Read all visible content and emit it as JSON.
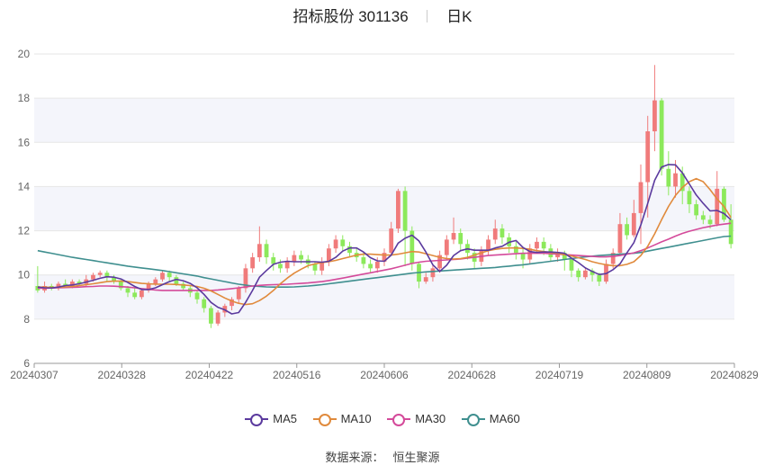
{
  "header": {
    "stock": "招标股份 301136",
    "period": "日K"
  },
  "source": {
    "label": "数据来源：",
    "name": "恒生聚源"
  },
  "colors": {
    "up": "#f07b7b",
    "down": "#8ce95b",
    "grid": "#e6e6e6",
    "band": "#f4f5fb",
    "axis": "#999999",
    "tick": "#666666"
  },
  "chart_data": {
    "type": "candlestick",
    "ylim": [
      6,
      20
    ],
    "yticks": [
      6,
      8,
      10,
      12,
      14,
      16,
      18,
      20
    ],
    "xtick_labels": [
      "20240307",
      "20240328",
      "20240422",
      "20240516",
      "20240606",
      "20240628",
      "20240719",
      "20240809",
      "20240829"
    ],
    "legend": [
      {
        "name": "MA5",
        "color": "#5b3a9e"
      },
      {
        "name": "MA10",
        "color": "#e08a3c"
      },
      {
        "name": "MA30",
        "color": "#d44a9a"
      },
      {
        "name": "MA60",
        "color": "#3f8f8f"
      }
    ],
    "candles": [
      [
        9.5,
        9.3,
        10.4,
        9.2
      ],
      [
        9.3,
        9.5,
        9.7,
        9.2
      ],
      [
        9.5,
        9.4,
        9.6,
        9.3
      ],
      [
        9.4,
        9.6,
        9.7,
        9.3
      ],
      [
        9.6,
        9.5,
        9.8,
        9.4
      ],
      [
        9.5,
        9.7,
        9.8,
        9.4
      ],
      [
        9.7,
        9.6,
        9.8,
        9.5
      ],
      [
        9.6,
        9.8,
        10.0,
        9.5
      ],
      [
        9.8,
        10.0,
        10.1,
        9.7
      ],
      [
        10.0,
        10.1,
        10.2,
        9.9
      ],
      [
        10.1,
        9.9,
        10.2,
        9.7
      ],
      [
        9.9,
        9.7,
        10.0,
        9.6
      ],
      [
        9.7,
        9.4,
        9.8,
        9.3
      ],
      [
        9.4,
        9.2,
        9.5,
        9.0
      ],
      [
        9.2,
        9.0,
        9.4,
        8.9
      ],
      [
        9.0,
        9.3,
        9.4,
        8.9
      ],
      [
        9.3,
        9.6,
        9.7,
        9.2
      ],
      [
        9.6,
        9.8,
        9.9,
        9.5
      ],
      [
        9.8,
        10.1,
        10.2,
        9.7
      ],
      [
        10.1,
        9.9,
        10.2,
        9.7
      ],
      [
        9.9,
        9.6,
        10.0,
        9.5
      ],
      [
        9.6,
        9.4,
        9.7,
        9.3
      ],
      [
        9.4,
        9.2,
        9.5,
        9.0
      ],
      [
        9.2,
        8.9,
        9.3,
        8.7
      ],
      [
        8.9,
        8.5,
        9.0,
        8.3
      ],
      [
        8.5,
        7.8,
        8.6,
        7.6
      ],
      [
        7.8,
        8.3,
        8.4,
        7.7
      ],
      [
        8.3,
        8.6,
        8.7,
        8.1
      ],
      [
        8.6,
        8.9,
        9.0,
        8.4
      ],
      [
        8.9,
        9.4,
        9.5,
        8.7
      ],
      [
        9.4,
        10.3,
        10.5,
        9.2
      ],
      [
        10.3,
        10.8,
        11.0,
        10.1
      ],
      [
        10.8,
        11.4,
        12.2,
        10.6
      ],
      [
        11.4,
        10.8,
        11.6,
        10.5
      ],
      [
        10.8,
        10.5,
        11.0,
        10.2
      ],
      [
        10.5,
        10.3,
        10.7,
        10.1
      ],
      [
        10.3,
        10.6,
        10.8,
        10.1
      ],
      [
        10.6,
        10.9,
        11.1,
        10.4
      ],
      [
        10.9,
        10.7,
        11.1,
        10.5
      ],
      [
        10.7,
        10.5,
        10.9,
        10.3
      ],
      [
        10.5,
        10.2,
        10.6,
        10.0
      ],
      [
        10.2,
        10.6,
        10.8,
        10.0
      ],
      [
        10.6,
        11.2,
        11.4,
        10.4
      ],
      [
        11.2,
        11.6,
        11.8,
        11.0
      ],
      [
        11.6,
        11.3,
        11.8,
        11.1
      ],
      [
        11.3,
        11.0,
        11.5,
        10.8
      ],
      [
        11.0,
        10.8,
        11.2,
        10.6
      ],
      [
        10.8,
        10.5,
        11.0,
        10.3
      ],
      [
        10.5,
        10.3,
        10.7,
        10.1
      ],
      [
        10.3,
        10.6,
        10.8,
        10.1
      ],
      [
        10.6,
        11.0,
        11.2,
        10.4
      ],
      [
        11.0,
        12.1,
        12.4,
        10.9
      ],
      [
        12.1,
        13.8,
        13.9,
        11.9
      ],
      [
        13.8,
        12.0,
        14.0,
        10.4
      ],
      [
        12.0,
        10.5,
        12.2,
        10.2
      ],
      [
        10.5,
        9.7,
        10.6,
        9.4
      ],
      [
        9.7,
        9.9,
        10.1,
        9.6
      ],
      [
        9.9,
        10.3,
        10.5,
        9.7
      ],
      [
        10.3,
        10.9,
        11.1,
        10.1
      ],
      [
        10.9,
        11.6,
        11.8,
        10.7
      ],
      [
        11.6,
        11.9,
        12.6,
        11.4
      ],
      [
        11.9,
        11.4,
        12.1,
        11.1
      ],
      [
        11.4,
        11.0,
        11.6,
        10.7
      ],
      [
        11.0,
        10.6,
        11.2,
        10.3
      ],
      [
        10.6,
        11.1,
        11.3,
        10.4
      ],
      [
        11.1,
        11.6,
        11.8,
        10.9
      ],
      [
        11.6,
        12.1,
        12.5,
        11.4
      ],
      [
        12.1,
        11.7,
        12.3,
        11.4
      ],
      [
        11.7,
        11.3,
        11.9,
        11.0
      ],
      [
        11.3,
        11.0,
        11.5,
        10.7
      ],
      [
        11.0,
        10.7,
        11.2,
        10.3
      ],
      [
        10.7,
        11.2,
        11.4,
        10.5
      ],
      [
        11.2,
        11.5,
        11.7,
        11.0
      ],
      [
        11.5,
        11.2,
        11.7,
        10.9
      ],
      [
        11.2,
        10.8,
        11.4,
        10.6
      ],
      [
        10.8,
        11.0,
        11.2,
        10.6
      ],
      [
        11.0,
        10.7,
        11.1,
        10.2
      ],
      [
        10.7,
        10.2,
        10.8,
        9.9
      ],
      [
        10.2,
        9.9,
        10.3,
        9.7
      ],
      [
        9.9,
        10.2,
        10.3,
        9.8
      ],
      [
        10.2,
        10.0,
        10.3,
        9.7
      ],
      [
        10.0,
        9.7,
        10.1,
        9.5
      ],
      [
        9.7,
        10.5,
        10.7,
        9.6
      ],
      [
        10.5,
        11.0,
        11.2,
        10.3
      ],
      [
        11.0,
        12.3,
        12.8,
        10.9
      ],
      [
        12.3,
        11.8,
        12.6,
        11.6
      ],
      [
        11.8,
        12.8,
        13.4,
        11.7
      ],
      [
        12.8,
        14.2,
        15.0,
        11.4
      ],
      [
        14.2,
        16.5,
        17.2,
        12.6
      ],
      [
        16.5,
        17.9,
        19.5,
        15.6
      ],
      [
        17.9,
        14.8,
        18.0,
        14.5
      ],
      [
        14.8,
        14.0,
        15.6,
        13.6
      ],
      [
        14.0,
        14.6,
        15.2,
        13.5
      ],
      [
        14.6,
        13.8,
        14.9,
        13.2
      ],
      [
        13.8,
        13.2,
        14.0,
        12.8
      ],
      [
        13.2,
        12.7,
        13.4,
        12.5
      ],
      [
        12.7,
        12.5,
        12.9,
        12.3
      ],
      [
        12.5,
        12.3,
        12.7,
        12.1
      ],
      [
        12.3,
        13.9,
        14.7,
        12.2
      ],
      [
        13.9,
        12.5,
        14.0,
        12.4
      ],
      [
        12.5,
        11.4,
        13.2,
        11.2
      ]
    ],
    "ma5": [
      9.45,
      9.42,
      9.41,
      9.45,
      9.52,
      9.55,
      9.6,
      9.68,
      9.76,
      9.85,
      9.92,
      9.9,
      9.82,
      9.66,
      9.48,
      9.34,
      9.34,
      9.42,
      9.56,
      9.7,
      9.8,
      9.74,
      9.62,
      9.42,
      9.12,
      8.76,
      8.54,
      8.42,
      8.24,
      8.3,
      8.76,
      9.3,
      9.9,
      10.2,
      10.48,
      10.58,
      10.62,
      10.6,
      10.6,
      10.6,
      10.6,
      10.58,
      10.62,
      10.8,
      11.08,
      11.22,
      11.22,
      11.04,
      10.78,
      10.64,
      10.62,
      10.9,
      11.44,
      11.66,
      11.8,
      11.54,
      11.04,
      10.46,
      10.16,
      10.44,
      10.88,
      11.1,
      11.18,
      11.12,
      11.12,
      11.12,
      11.22,
      11.3,
      11.48,
      11.56,
      11.24,
      11.06,
      11.02,
      11.04,
      11.04,
      11.02,
      10.98,
      10.76,
      10.56,
      10.32,
      10.16,
      10.02,
      10.06,
      10.24,
      10.5,
      11.0,
      11.46,
      12.26,
      13.24,
      14.28,
      14.88,
      15.0,
      14.98,
      14.62,
      14.12,
      13.62,
      13.24,
      12.9,
      12.92,
      12.78,
      12.5
    ],
    "ma10": [
      9.45,
      9.45,
      9.44,
      9.44,
      9.46,
      9.48,
      9.52,
      9.56,
      9.6,
      9.65,
      9.7,
      9.72,
      9.72,
      9.7,
      9.66,
      9.62,
      9.6,
      9.58,
      9.58,
      9.58,
      9.57,
      9.55,
      9.52,
      9.48,
      9.4,
      9.28,
      9.12,
      8.96,
      8.82,
      8.72,
      8.66,
      8.7,
      8.84,
      9.04,
      9.3,
      9.6,
      9.86,
      10.08,
      10.26,
      10.42,
      10.5,
      10.56,
      10.6,
      10.66,
      10.74,
      10.82,
      10.9,
      10.94,
      10.94,
      10.92,
      10.9,
      10.9,
      10.94,
      11.0,
      11.06,
      11.04,
      10.96,
      10.88,
      10.8,
      10.74,
      10.72,
      10.74,
      10.8,
      10.9,
      11.0,
      11.1,
      11.16,
      11.2,
      11.22,
      11.22,
      11.2,
      11.16,
      11.1,
      11.06,
      11.02,
      10.98,
      10.92,
      10.86,
      10.78,
      10.7,
      10.6,
      10.52,
      10.46,
      10.42,
      10.42,
      10.48,
      10.6,
      10.88,
      11.3,
      11.86,
      12.5,
      13.1,
      13.6,
      13.96,
      14.22,
      14.36,
      14.22,
      13.86,
      13.44,
      13.1,
      12.6
    ],
    "ma30": [
      9.4,
      9.4,
      9.41,
      9.42,
      9.43,
      9.44,
      9.45,
      9.47,
      9.48,
      9.5,
      9.5,
      9.49,
      9.47,
      9.45,
      9.42,
      9.38,
      9.35,
      9.32,
      9.3,
      9.3,
      9.3,
      9.3,
      9.3,
      9.3,
      9.3,
      9.3,
      9.32,
      9.35,
      9.38,
      9.42,
      9.46,
      9.5,
      9.53,
      9.55,
      9.56,
      9.57,
      9.58,
      9.6,
      9.62,
      9.64,
      9.67,
      9.7,
      9.75,
      9.8,
      9.86,
      9.92,
      9.98,
      10.04,
      10.1,
      10.16,
      10.22,
      10.28,
      10.36,
      10.44,
      10.52,
      10.58,
      10.62,
      10.64,
      10.66,
      10.68,
      10.7,
      10.72,
      10.76,
      10.8,
      10.84,
      10.88,
      10.9,
      10.92,
      10.94,
      10.96,
      10.98,
      10.98,
      10.98,
      10.98,
      10.96,
      10.94,
      10.92,
      10.9,
      10.88,
      10.86,
      10.84,
      10.82,
      10.82,
      10.84,
      10.88,
      10.94,
      11.0,
      11.1,
      11.22,
      11.36,
      11.5,
      11.62,
      11.76,
      11.88,
      11.98,
      12.06,
      12.14,
      12.2,
      12.26,
      12.3,
      12.34
    ],
    "ma60": [
      11.1,
      11.04,
      10.98,
      10.92,
      10.86,
      10.8,
      10.75,
      10.7,
      10.65,
      10.6,
      10.55,
      10.5,
      10.45,
      10.4,
      10.36,
      10.32,
      10.28,
      10.24,
      10.2,
      10.15,
      10.1,
      10.05,
      10.0,
      9.95,
      9.88,
      9.82,
      9.76,
      9.7,
      9.64,
      9.58,
      9.54,
      9.5,
      9.48,
      9.46,
      9.45,
      9.45,
      9.45,
      9.46,
      9.48,
      9.5,
      9.53,
      9.56,
      9.6,
      9.64,
      9.68,
      9.72,
      9.76,
      9.8,
      9.84,
      9.88,
      9.92,
      9.96,
      10.0,
      10.04,
      10.08,
      10.11,
      10.14,
      10.16,
      10.18,
      10.2,
      10.22,
      10.24,
      10.26,
      10.28,
      10.3,
      10.32,
      10.34,
      10.37,
      10.4,
      10.43,
      10.46,
      10.5,
      10.54,
      10.58,
      10.62,
      10.66,
      10.7,
      10.74,
      10.78,
      10.82,
      10.85,
      10.88,
      10.9,
      10.92,
      10.94,
      10.96,
      10.98,
      11.02,
      11.08,
      11.14,
      11.2,
      11.26,
      11.32,
      11.38,
      11.44,
      11.5,
      11.56,
      11.62,
      11.68,
      11.74,
      11.76
    ]
  }
}
